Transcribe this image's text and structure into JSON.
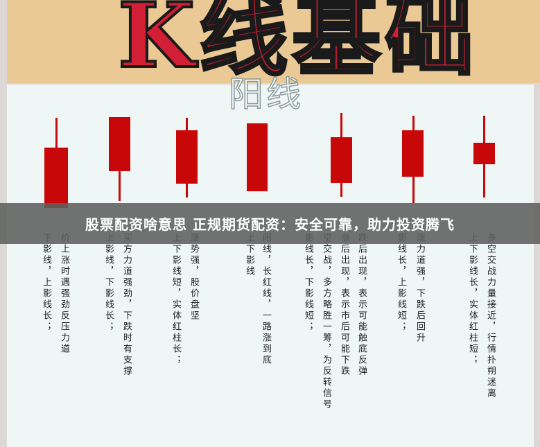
{
  "header": {
    "title": "K线基础"
  },
  "panel": {
    "subtitle": "阳线"
  },
  "colors": {
    "candle": "#c80808",
    "title": "#d21f35",
    "header_bg": "#ebc994"
  },
  "descriptions": [
    "下影线，上影线长；",
    "价上涨时遇强劲反压力道",
    "上影线，下影线长；",
    "买方力道强劲，下跌时有支撑",
    "上下影线短，实体红柱长；",
    "涨势强，股价盘坚",
    "上下影线",
    "阳线，长红线，一路涨到底",
    "影线长，下影线短；",
    "空交战，多方略胜一筹，为反转信号",
    "涨后出现，表示市后可能下跌",
    "跌后出现，表示可能触底反弹",
    "影线长，上影线短；",
    "涨力道强，下跌后回升",
    "上下影线长，实体红柱短；",
    "多空交战力量接近，行情扑朔迷离"
  ],
  "banner": {
    "text": "股票配资啥意思 正规期货配资：安全可靠，助力投资腾飞"
  }
}
